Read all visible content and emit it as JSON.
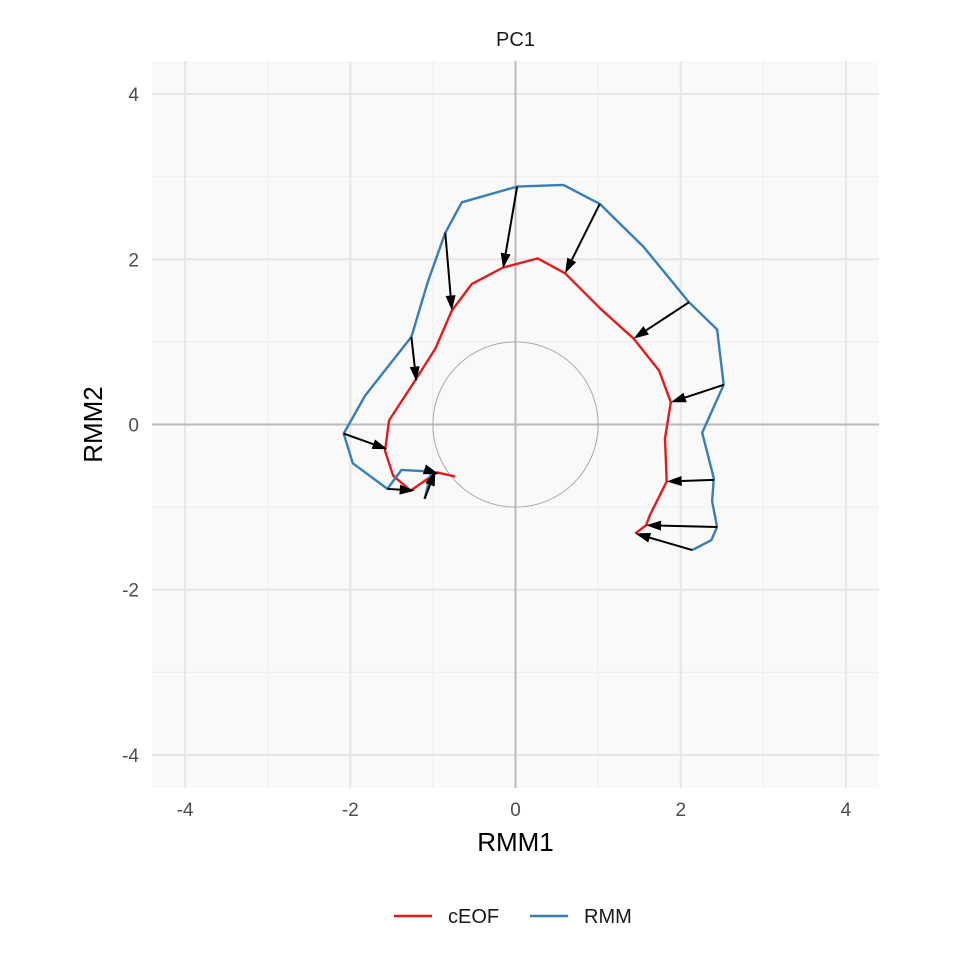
{
  "chart_data": {
    "type": "line",
    "title": "PC1",
    "xlabel": "RMM1",
    "ylabel": "RMM2",
    "xlim": [
      -4.4,
      4.4
    ],
    "ylim": [
      -4.4,
      4.4
    ],
    "x_ticks": [
      -4,
      -2,
      0,
      2,
      4
    ],
    "y_ticks": [
      -4,
      -2,
      0,
      2,
      4
    ],
    "grid": true,
    "reference_circle_radius": 1,
    "legend": {
      "position": "bottom"
    },
    "series": [
      {
        "name": "cEOF",
        "color": "#e41a1c",
        "points": [
          [
            -0.73,
            -0.63
          ],
          [
            -0.95,
            -0.58
          ],
          [
            -1.27,
            -0.8
          ],
          [
            -1.48,
            -0.62
          ],
          [
            -1.58,
            -0.32
          ],
          [
            -1.53,
            0.05
          ],
          [
            -1.21,
            0.54
          ],
          [
            -0.97,
            0.92
          ],
          [
            -0.77,
            1.38
          ],
          [
            -0.53,
            1.7
          ],
          [
            -0.15,
            1.9
          ],
          [
            0.27,
            2.01
          ],
          [
            0.6,
            1.83
          ],
          [
            1.03,
            1.4
          ],
          [
            1.43,
            1.04
          ],
          [
            1.74,
            0.65
          ],
          [
            1.88,
            0.27
          ],
          [
            1.81,
            -0.17
          ],
          [
            1.83,
            -0.69
          ],
          [
            1.63,
            -1.09
          ],
          [
            1.58,
            -1.22
          ],
          [
            1.45,
            -1.32
          ]
        ]
      },
      {
        "name": "RMM",
        "color": "#377eb8",
        "points": [
          [
            -1.1,
            -0.9
          ],
          [
            -1.02,
            -0.57
          ],
          [
            -1.38,
            -0.55
          ],
          [
            -1.55,
            -0.78
          ],
          [
            -1.97,
            -0.47
          ],
          [
            -2.08,
            -0.11
          ],
          [
            -1.82,
            0.35
          ],
          [
            -1.26,
            1.06
          ],
          [
            -1.06,
            1.73
          ],
          [
            -0.85,
            2.32
          ],
          [
            -0.65,
            2.69
          ],
          [
            0.02,
            2.88
          ],
          [
            0.58,
            2.9
          ],
          [
            1.02,
            2.67
          ],
          [
            1.55,
            2.15
          ],
          [
            2.1,
            1.48
          ],
          [
            2.44,
            1.15
          ],
          [
            2.52,
            0.48
          ],
          [
            2.26,
            -0.1
          ],
          [
            2.4,
            -0.65
          ],
          [
            2.38,
            -0.93
          ],
          [
            2.44,
            -1.24
          ],
          [
            2.37,
            -1.4
          ],
          [
            2.14,
            -1.52
          ]
        ]
      }
    ],
    "arrows": [
      {
        "from": [
          -1.1,
          -0.9
        ],
        "to": [
          -0.97,
          -0.56
        ]
      },
      {
        "from": [
          -1.02,
          -0.57
        ],
        "to": [
          -0.93,
          -0.6
        ]
      },
      {
        "from": [
          -1.55,
          -0.78
        ],
        "to": [
          -1.22,
          -0.8
        ]
      },
      {
        "from": [
          -2.08,
          -0.11
        ],
        "to": [
          -1.55,
          -0.3
        ]
      },
      {
        "from": [
          -1.26,
          1.06
        ],
        "to": [
          -1.2,
          0.52
        ]
      },
      {
        "from": [
          -0.85,
          2.32
        ],
        "to": [
          -0.77,
          1.38
        ]
      },
      {
        "from": [
          0.02,
          2.88
        ],
        "to": [
          -0.15,
          1.89
        ]
      },
      {
        "from": [
          1.02,
          2.67
        ],
        "to": [
          0.6,
          1.83
        ]
      },
      {
        "from": [
          2.1,
          1.48
        ],
        "to": [
          1.43,
          1.04
        ]
      },
      {
        "from": [
          2.52,
          0.48
        ],
        "to": [
          1.88,
          0.27
        ]
      },
      {
        "from": [
          2.4,
          -0.67
        ],
        "to": [
          1.83,
          -0.69
        ]
      },
      {
        "from": [
          2.44,
          -1.24
        ],
        "to": [
          1.58,
          -1.22
        ]
      },
      {
        "from": [
          2.14,
          -1.52
        ],
        "to": [
          1.45,
          -1.32
        ]
      }
    ]
  }
}
